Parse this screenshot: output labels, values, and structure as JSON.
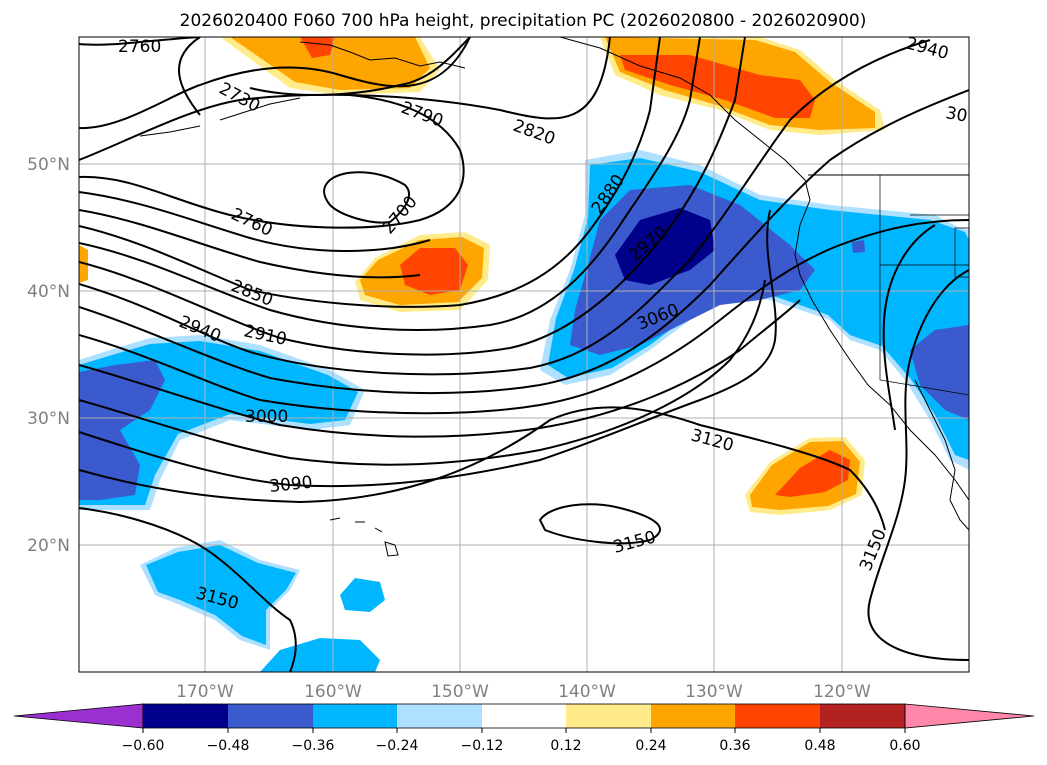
{
  "title": "2026020400 F060 700 hPa height, precipitation PC (2026020800 - 2026020900)",
  "map": {
    "lon_range": [
      180,
      110
    ],
    "lat_range": [
      10,
      60
    ],
    "lon_labels": [
      "170°W",
      "160°W",
      "150°W",
      "140°W",
      "130°W",
      "120°W"
    ],
    "lat_labels": [
      "20°N",
      "30°N",
      "40°N",
      "50°N"
    ],
    "gridlines": true
  },
  "colorbar": {
    "extend": "both",
    "ticks": [
      "−0.60",
      "−0.48",
      "−0.36",
      "−0.24",
      "−0.12",
      "0.12",
      "0.24",
      "0.36",
      "0.48",
      "0.60"
    ],
    "colors": {
      "under": "#9b30d0",
      "bins": [
        "#00008b",
        "#3a5acd",
        "#00b7ff",
        "#aee0ff",
        "#ffffff",
        "#ffeb8a",
        "#ffa500",
        "#ff4500",
        "#b22222"
      ],
      "over": "#ff88aa"
    }
  },
  "contours": {
    "labels": [
      "2760",
      "2730",
      "2790",
      "2820",
      "2940",
      "30",
      "2700",
      "2760",
      "2880",
      "2970",
      "2850",
      "2910",
      "2940",
      "3060",
      "3000",
      "3120",
      "3090",
      "3150",
      "3150",
      "3150"
    ]
  }
}
